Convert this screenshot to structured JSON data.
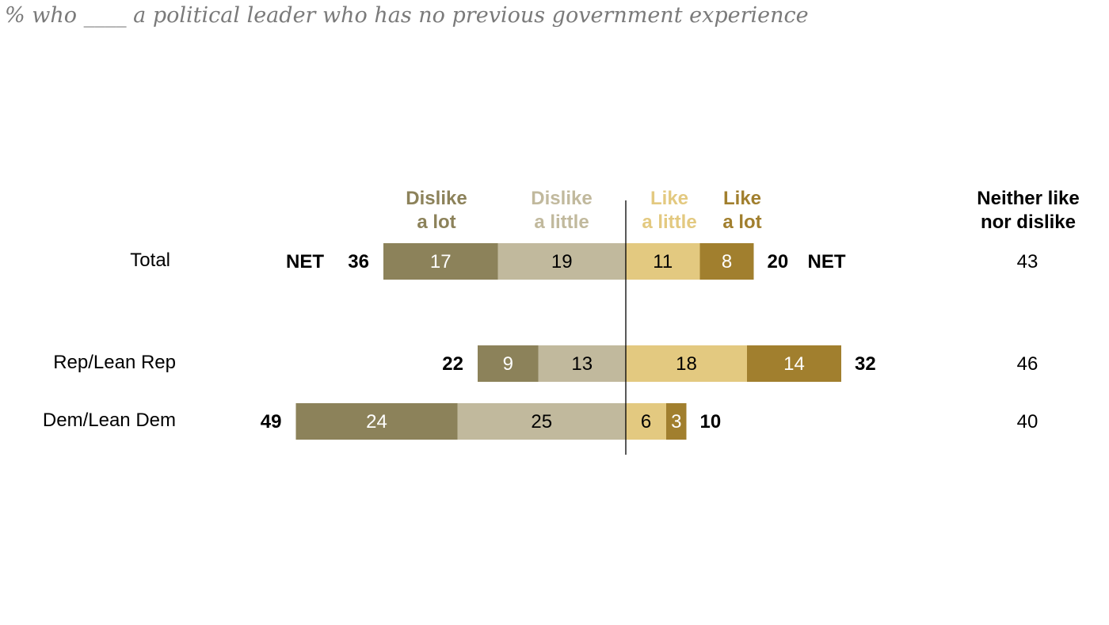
{
  "chart_data": {
    "type": "bar",
    "orientation": "horizontal-diverging",
    "title": "% who ____ a political leader who has no previous government experience",
    "categories": [
      "Total",
      "Rep/Lean Rep",
      "Dem/Lean Dem"
    ],
    "series": [
      {
        "name": "Dislike a lot",
        "side": "left",
        "color": "#8c825a",
        "label_color": "#ffffff",
        "values": [
          17,
          9,
          24
        ]
      },
      {
        "name": "Dislike a little",
        "side": "left",
        "color": "#c1b99d",
        "label_color": "#000000",
        "values": [
          19,
          13,
          25
        ]
      },
      {
        "name": "Like a little",
        "side": "right",
        "color": "#e3c980",
        "label_color": "#000000",
        "values": [
          11,
          18,
          6
        ]
      },
      {
        "name": "Like a lot",
        "side": "right",
        "color": "#a17f2e",
        "label_color": "#ffffff",
        "values": [
          8,
          14,
          3
        ]
      }
    ],
    "header_lines": [
      [
        "Dislike",
        "a lot"
      ],
      [
        "Dislike",
        "a little"
      ],
      [
        "Like",
        "a little"
      ],
      [
        "Like",
        "a lot"
      ]
    ],
    "net_dislike": [
      36,
      22,
      49
    ],
    "net_like": [
      20,
      32,
      10
    ],
    "net_label": "NET",
    "neither": {
      "header": [
        "Neither like",
        "nor dislike"
      ],
      "values": [
        43,
        46,
        40
      ]
    }
  }
}
